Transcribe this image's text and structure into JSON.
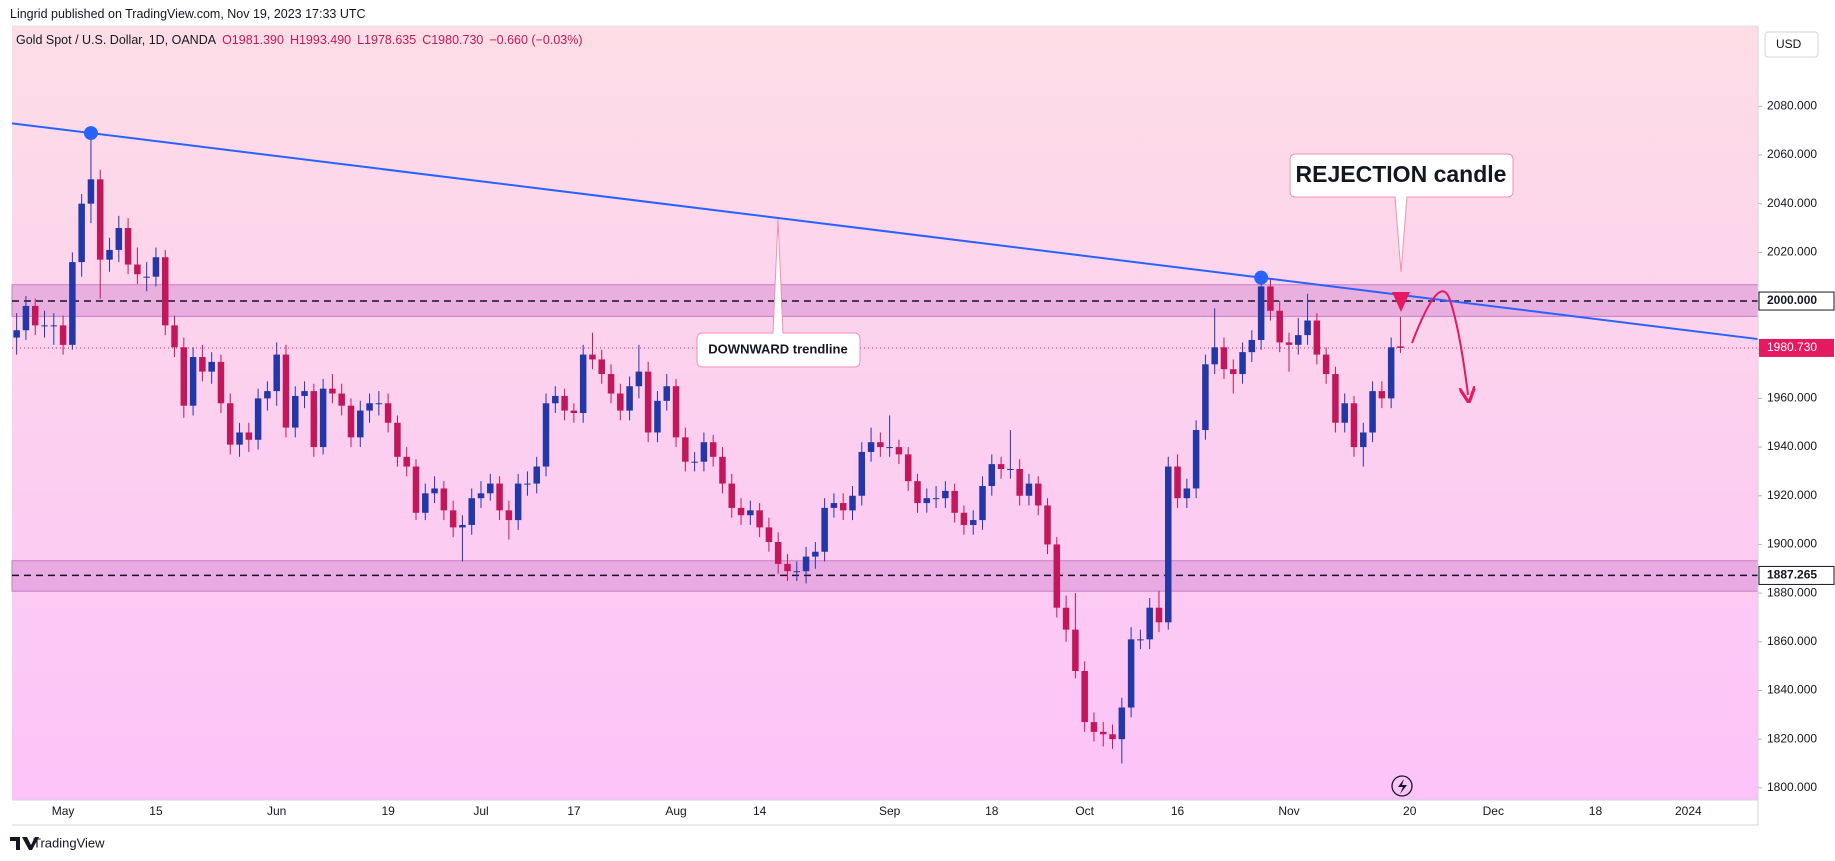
{
  "header": {
    "published": "Lingrid published on TradingView.com, Nov 19, 2023 17:33 UTC",
    "brand": "TradingView",
    "currency": "USD"
  },
  "legend": {
    "symbol": "Gold Spot / U.S. Dollar, 1D, OANDA",
    "open": "O1981.390",
    "high": "H1993.490",
    "low": "L1978.635",
    "close": "C1980.730",
    "change": "−0.660 (−0.03%)"
  },
  "chart_data": {
    "type": "candlestick",
    "up_color": "#2337a6",
    "down_color": "#c2185b",
    "ylim": [
      1795,
      2113
    ],
    "yticks": [
      {
        "value": 1800,
        "label": "1800.000"
      },
      {
        "value": 1820,
        "label": "1820.000"
      },
      {
        "value": 1840,
        "label": "1840.000"
      },
      {
        "value": 1860,
        "label": "1860.000"
      },
      {
        "value": 1880,
        "label": "1880.000"
      },
      {
        "value": 1900,
        "label": "1900.000"
      },
      {
        "value": 1920,
        "label": "1920.000"
      },
      {
        "value": 1940,
        "label": "1940.000"
      },
      {
        "value": 1960,
        "label": "1960.000"
      },
      {
        "value": 1980,
        "label": "1980.000"
      },
      {
        "value": 2000,
        "label": "2000.000"
      },
      {
        "value": 2020,
        "label": "2020.000"
      },
      {
        "value": 2040,
        "label": "2040.000"
      },
      {
        "value": 2060,
        "label": "2060.000"
      },
      {
        "value": 2080,
        "label": "2080.000"
      }
    ],
    "grid": false,
    "categories": [
      null,
      null,
      null,
      null,
      null,
      "May",
      null,
      null,
      null,
      null,
      null,
      null,
      null,
      null,
      null,
      "15",
      null,
      null,
      null,
      null,
      null,
      null,
      null,
      null,
      null,
      null,
      null,
      null,
      "Jun",
      null,
      null,
      null,
      null,
      null,
      null,
      null,
      null,
      null,
      null,
      null,
      "19",
      null,
      null,
      null,
      null,
      null,
      null,
      null,
      null,
      null,
      "Jul",
      null,
      null,
      null,
      null,
      null,
      null,
      null,
      null,
      null,
      "17",
      null,
      null,
      null,
      null,
      null,
      null,
      null,
      null,
      null,
      null,
      "Aug",
      null,
      null,
      null,
      null,
      null,
      null,
      null,
      null,
      "14",
      null,
      null,
      null,
      null,
      null,
      null,
      null,
      null,
      null,
      null,
      null,
      null,
      null,
      "Sep",
      null,
      null,
      null,
      null,
      null,
      null,
      null,
      null,
      null,
      null,
      "18",
      null,
      null,
      null,
      null,
      null,
      null,
      null,
      null,
      null,
      "Oct",
      null,
      null,
      null,
      null,
      null,
      null,
      null,
      null,
      null,
      "16",
      null,
      null,
      null,
      null,
      null,
      null,
      null,
      null,
      null,
      null,
      null,
      "Nov",
      null,
      null,
      null,
      null,
      null,
      null,
      null,
      null,
      null,
      null,
      null,
      null,
      "20",
      null,
      null,
      null,
      null,
      null,
      null,
      null,
      null,
      "Dec",
      null,
      null,
      null,
      null,
      null,
      null,
      null,
      null,
      null,
      null,
      "18",
      null,
      null,
      null,
      null,
      null,
      null,
      null,
      null,
      null,
      "2024",
      null,
      null,
      null,
      null,
      null,
      null,
      null
    ],
    "ohlc": [
      [
        1985,
        1995,
        1978,
        1988
      ],
      [
        1988,
        2002,
        1984,
        1998
      ],
      [
        1998,
        2001,
        1986,
        1990
      ],
      [
        1990,
        1996,
        1985,
        1990
      ],
      [
        1990,
        1995,
        1982,
        1990
      ],
      [
        1990,
        1994,
        1978,
        1982
      ],
      [
        1982,
        2020,
        1980,
        2016
      ],
      [
        2016,
        2044,
        2010,
        2040
      ],
      [
        2040,
        2067,
        2032,
        2050
      ],
      [
        2050,
        2054,
        2001,
        2017
      ],
      [
        2017,
        2026,
        2012,
        2021
      ],
      [
        2021,
        2035,
        2016,
        2030
      ],
      [
        2030,
        2034,
        2011,
        2015
      ],
      [
        2015,
        2022,
        2007,
        2011
      ],
      [
        2010,
        2016,
        2004,
        2010
      ],
      [
        2010,
        2022,
        2006,
        2018
      ],
      [
        2018,
        2021,
        1986,
        1990
      ],
      [
        1990,
        1994,
        1977,
        1981
      ],
      [
        1981,
        1985,
        1952,
        1957
      ],
      [
        1957,
        1981,
        1953,
        1977
      ],
      [
        1977,
        1982,
        1967,
        1971
      ],
      [
        1971,
        1979,
        1966,
        1975
      ],
      [
        1975,
        1978,
        1954,
        1958
      ],
      [
        1958,
        1962,
        1937,
        1941
      ],
      [
        1941,
        1950,
        1936,
        1946
      ],
      [
        1946,
        1950,
        1938,
        1943
      ],
      [
        1943,
        1964,
        1939,
        1960
      ],
      [
        1960,
        1967,
        1955,
        1963
      ],
      [
        1963,
        1983,
        1957,
        1978
      ],
      [
        1978,
        1982,
        1944,
        1948
      ],
      [
        1948,
        1965,
        1944,
        1961
      ],
      [
        1961,
        1967,
        1956,
        1963
      ],
      [
        1963,
        1966,
        1936,
        1940
      ],
      [
        1940,
        1968,
        1937,
        1964
      ],
      [
        1964,
        1970,
        1958,
        1962
      ],
      [
        1962,
        1966,
        1953,
        1957
      ],
      [
        1957,
        1960,
        1940,
        1944
      ],
      [
        1944,
        1959,
        1940,
        1955
      ],
      [
        1955,
        1962,
        1950,
        1958
      ],
      [
        1958,
        1963,
        1953,
        1958
      ],
      [
        1958,
        1962,
        1946,
        1950
      ],
      [
        1950,
        1953,
        1932,
        1936
      ],
      [
        1936,
        1940,
        1928,
        1932
      ],
      [
        1932,
        1935,
        1910,
        1913
      ],
      [
        1913,
        1925,
        1910,
        1921
      ],
      [
        1921,
        1928,
        1917,
        1923
      ],
      [
        1923,
        1926,
        1910,
        1914
      ],
      [
        1914,
        1918,
        1903,
        1907
      ],
      [
        1907,
        1912,
        1893,
        1908
      ],
      [
        1908,
        1923,
        1904,
        1919
      ],
      [
        1919,
        1926,
        1915,
        1921
      ],
      [
        1921,
        1929,
        1918,
        1925
      ],
      [
        1925,
        1928,
        1910,
        1914
      ],
      [
        1914,
        1918,
        1902,
        1910
      ],
      [
        1910,
        1929,
        1906,
        1925
      ],
      [
        1925,
        1930,
        1920,
        1925
      ],
      [
        1925,
        1936,
        1921,
        1932
      ],
      [
        1932,
        1962,
        1928,
        1958
      ],
      [
        1958,
        1965,
        1954,
        1961
      ],
      [
        1961,
        1964,
        1951,
        1955
      ],
      [
        1955,
        1958,
        1950,
        1954
      ],
      [
        1954,
        1982,
        1950,
        1978
      ],
      [
        1978,
        1987,
        1972,
        1976
      ],
      [
        1976,
        1980,
        1966,
        1970
      ],
      [
        1970,
        1974,
        1958,
        1962
      ],
      [
        1962,
        1966,
        1951,
        1955
      ],
      [
        1955,
        1969,
        1951,
        1965
      ],
      [
        1965,
        1982,
        1960,
        1971
      ],
      [
        1971,
        1975,
        1942,
        1946
      ],
      [
        1946,
        1963,
        1942,
        1959
      ],
      [
        1959,
        1970,
        1955,
        1965
      ],
      [
        1965,
        1968,
        1940,
        1944
      ],
      [
        1944,
        1948,
        1930,
        1934
      ],
      [
        1934,
        1938,
        1930,
        1934
      ],
      [
        1934,
        1946,
        1930,
        1942
      ],
      [
        1942,
        1945,
        1932,
        1936
      ],
      [
        1936,
        1940,
        1921,
        1925
      ],
      [
        1925,
        1929,
        1911,
        1915
      ],
      [
        1915,
        1919,
        1908,
        1912
      ],
      [
        1912,
        1918,
        1908,
        1914
      ],
      [
        1914,
        1917,
        1903,
        1907
      ],
      [
        1907,
        1911,
        1897,
        1901
      ],
      [
        1901,
        1905,
        1888,
        1892
      ],
      [
        1892,
        1896,
        1885,
        1889
      ],
      [
        1889,
        1893,
        1885,
        1889
      ],
      [
        1889,
        1899,
        1884,
        1895
      ],
      [
        1895,
        1901,
        1890,
        1897
      ],
      [
        1897,
        1919,
        1893,
        1915
      ],
      [
        1915,
        1921,
        1911,
        1917
      ],
      [
        1917,
        1921,
        1910,
        1914
      ],
      [
        1914,
        1924,
        1910,
        1920
      ],
      [
        1920,
        1942,
        1916,
        1938
      ],
      [
        1938,
        1948,
        1934,
        1942
      ],
      [
        1942,
        1946,
        1936,
        1940
      ],
      [
        1940,
        1953,
        1936,
        1940
      ],
      [
        1940,
        1943,
        1933,
        1937
      ],
      [
        1937,
        1940,
        1922,
        1926
      ],
      [
        1926,
        1929,
        1913,
        1917
      ],
      [
        1917,
        1923,
        1913,
        1919
      ],
      [
        1919,
        1924,
        1915,
        1919
      ],
      [
        1919,
        1926,
        1915,
        1922
      ],
      [
        1922,
        1925,
        1909,
        1913
      ],
      [
        1913,
        1916,
        1904,
        1908
      ],
      [
        1908,
        1914,
        1904,
        1910
      ],
      [
        1910,
        1928,
        1906,
        1924
      ],
      [
        1924,
        1937,
        1920,
        1933
      ],
      [
        1933,
        1936,
        1927,
        1931
      ],
      [
        1931,
        1947,
        1927,
        1931
      ],
      [
        1931,
        1935,
        1916,
        1920
      ],
      [
        1920,
        1929,
        1916,
        1925
      ],
      [
        1925,
        1928,
        1912,
        1916
      ],
      [
        1916,
        1919,
        1896,
        1900
      ],
      [
        1900,
        1903,
        1870,
        1874
      ],
      [
        1874,
        1879,
        1860,
        1865
      ],
      [
        1865,
        1880,
        1845,
        1848
      ],
      [
        1848,
        1852,
        1823,
        1827
      ],
      [
        1827,
        1831,
        1819,
        1823
      ],
      [
        1823,
        1827,
        1817,
        1822
      ],
      [
        1822,
        1826,
        1816,
        1820
      ],
      [
        1820,
        1837,
        1810,
        1833
      ],
      [
        1833,
        1866,
        1829,
        1861
      ],
      [
        1861,
        1865,
        1857,
        1861
      ],
      [
        1861,
        1878,
        1857,
        1874
      ],
      [
        1874,
        1881,
        1864,
        1868
      ],
      [
        1868,
        1936,
        1865,
        1932
      ],
      [
        1932,
        1937,
        1915,
        1919
      ],
      [
        1919,
        1927,
        1915,
        1923
      ],
      [
        1923,
        1951,
        1919,
        1947
      ],
      [
        1947,
        1978,
        1943,
        1974
      ],
      [
        1974,
        1997,
        1970,
        1981
      ],
      [
        1981,
        1985,
        1968,
        1972
      ],
      [
        1972,
        1976,
        1962,
        1970
      ],
      [
        1970,
        1983,
        1966,
        1979
      ],
      [
        1979,
        1988,
        1975,
        1984
      ],
      [
        1984,
        2009,
        1980,
        2006
      ],
      [
        2006,
        2009,
        1992,
        1996
      ],
      [
        1996,
        2000,
        1979,
        1983
      ],
      [
        1983,
        1987,
        1971,
        1982
      ],
      [
        1982,
        1993,
        1978,
        1986
      ],
      [
        1986,
        2003,
        1982,
        1992
      ],
      [
        1992,
        1995,
        1974,
        1978
      ],
      [
        1978,
        1981,
        1966,
        1970
      ],
      [
        1970,
        1973,
        1946,
        1950
      ],
      [
        1950,
        1962,
        1946,
        1958
      ],
      [
        1958,
        1961,
        1936,
        1940
      ],
      [
        1940,
        1950,
        1932,
        1946
      ],
      [
        1946,
        1967,
        1942,
        1963
      ],
      [
        1963,
        1967,
        1956,
        1960
      ],
      [
        1960,
        1985,
        1956,
        1981
      ],
      [
        1981.39,
        1993.49,
        1978.635,
        1980.73
      ],
      null,
      null,
      null,
      null,
      null,
      null,
      null,
      null,
      null,
      null,
      null,
      null,
      null,
      null,
      null,
      null,
      null,
      null,
      null,
      null,
      null,
      null,
      null,
      null,
      null,
      null,
      null,
      null,
      null,
      null,
      null,
      null,
      null,
      null,
      null,
      null,
      null,
      null
    ],
    "zones": [
      [
        1993.7,
        2006.7
      ],
      [
        1880.8,
        1893.3
      ]
    ],
    "zone_color": "#d98fd6",
    "levels": [
      {
        "value": 2000,
        "label": "2000.000"
      },
      {
        "value": 1887.265,
        "label": "1887.265"
      }
    ],
    "last_price": {
      "value": 1980.73,
      "label": "1980.730",
      "color": "#e5195f"
    },
    "trendline": {
      "color": "#2962ff",
      "points": [
        {
          "bar": 8,
          "price": 2069
        },
        {
          "bar": 134,
          "price": 2009.6
        }
      ]
    },
    "annotations": {
      "rejection": "REJECTION candle",
      "trendline": "DOWNWARD trendline"
    }
  }
}
